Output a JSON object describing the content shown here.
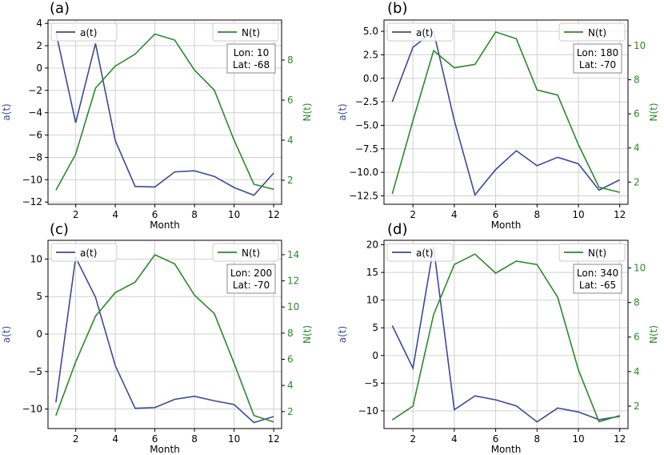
{
  "colors": {
    "a": "#3a4a9a",
    "n": "#2a8a2a",
    "grid": "#d0d0d0",
    "axis": "#000000"
  },
  "chart_data": [
    {
      "type": "line",
      "panel_label": "(a)",
      "xlabel": "Month",
      "ylabel_left": "a(t)",
      "ylabel_right": "N(t)",
      "legend_left": "a(t)",
      "legend_right": "N(t)",
      "info": [
        "Lon: 10",
        "Lat: -68"
      ],
      "x": [
        1,
        2,
        3,
        4,
        5,
        6,
        7,
        8,
        9,
        10,
        11,
        12
      ],
      "xticks": [
        2,
        4,
        6,
        8,
        10,
        12
      ],
      "xlim": [
        0.6,
        12.4
      ],
      "ylim_left": [
        -12.2,
        4.3
      ],
      "yticks_left": [
        -12,
        -10,
        -8,
        -6,
        -4,
        -2,
        0,
        2,
        4
      ],
      "ylim_right": [
        0.8,
        10.0
      ],
      "yticks_right": [
        2,
        4,
        6,
        8
      ],
      "series_left": [
        3.2,
        -4.9,
        2.2,
        -6.5,
        -10.6,
        -10.65,
        -9.3,
        -9.2,
        -9.7,
        -10.7,
        -11.4,
        -9.4
      ],
      "series_right": [
        1.5,
        3.3,
        6.6,
        7.7,
        8.3,
        9.3,
        9.0,
        7.5,
        6.5,
        4.0,
        1.8,
        1.55
      ]
    },
    {
      "type": "line",
      "panel_label": "(b)",
      "xlabel": "Month",
      "ylabel_left": "a(t)",
      "ylabel_right": "N(t)",
      "legend_left": "a(t)",
      "legend_right": "N(t)",
      "info": [
        "Lon: 180",
        "Lat: -70"
      ],
      "x": [
        1,
        2,
        3,
        4,
        5,
        6,
        7,
        8,
        9,
        10,
        11,
        12
      ],
      "xticks": [
        2,
        4,
        6,
        8,
        10,
        12
      ],
      "xlim": [
        0.6,
        12.4
      ],
      "ylim_left": [
        -13.4,
        6.2
      ],
      "yticks_left": [
        -12.5,
        -10.0,
        -7.5,
        -5.0,
        -2.5,
        0.0,
        2.5,
        5.0
      ],
      "yticks_left_labels": [
        "−12.5",
        "−10.0",
        "−7.5",
        "−5.0",
        "−2.5",
        "0.0",
        "2.5",
        "5.0"
      ],
      "ylim_right": [
        0.7,
        11.5
      ],
      "yticks_right": [
        2,
        4,
        6,
        8,
        10
      ],
      "series_left": [
        -2.5,
        3.3,
        5.0,
        -4.5,
        -12.4,
        -9.7,
        -7.7,
        -9.3,
        -8.4,
        -9.1,
        -11.9,
        -10.8
      ],
      "series_right": [
        1.3,
        5.6,
        9.7,
        8.7,
        8.9,
        10.8,
        10.4,
        7.4,
        7.1,
        4.2,
        1.7,
        1.4
      ]
    },
    {
      "type": "line",
      "panel_label": "(c)",
      "xlabel": "Month",
      "ylabel_left": "a(t)",
      "ylabel_right": "N(t)",
      "legend_left": "a(t)",
      "legend_right": "N(t)",
      "info": [
        "Lon: 200",
        "Lat: -70"
      ],
      "x": [
        1,
        2,
        3,
        4,
        5,
        6,
        7,
        8,
        9,
        10,
        11,
        12
      ],
      "xticks": [
        2,
        4,
        6,
        8,
        10,
        12
      ],
      "xlim": [
        0.6,
        12.4
      ],
      "ylim_left": [
        -12.6,
        12.5
      ],
      "yticks_left": [
        -10,
        -5,
        0,
        5,
        10
      ],
      "ylim_right": [
        0.7,
        15.1
      ],
      "yticks_right": [
        2,
        4,
        6,
        8,
        10,
        12,
        14
      ],
      "series_left": [
        -9.1,
        10.2,
        4.9,
        -4.2,
        -9.9,
        -9.8,
        -8.7,
        -8.3,
        -8.9,
        -9.4,
        -11.8,
        -11.0
      ],
      "series_right": [
        1.7,
        5.8,
        9.3,
        11.1,
        11.9,
        14.0,
        13.3,
        10.9,
        9.5,
        5.7,
        1.7,
        1.2
      ]
    },
    {
      "type": "line",
      "panel_label": "(d)",
      "xlabel": "Month",
      "ylabel_left": "a(t)",
      "ylabel_right": "N(t)",
      "legend_left": "a(t)",
      "legend_right": "N(t)",
      "info": [
        "Lon: 340",
        "Lat: -65"
      ],
      "x": [
        1,
        2,
        3,
        4,
        5,
        6,
        7,
        8,
        9,
        10,
        11,
        12
      ],
      "xticks": [
        2,
        4,
        6,
        8,
        10,
        12
      ],
      "xlim": [
        0.6,
        12.4
      ],
      "ylim_left": [
        -13.2,
        20.8
      ],
      "yticks_left": [
        -10,
        -5,
        0,
        5,
        10,
        15,
        20
      ],
      "ylim_right": [
        0.7,
        11.6
      ],
      "yticks_right": [
        2,
        4,
        6,
        8,
        10
      ],
      "series_left": [
        5.4,
        -2.3,
        19.6,
        -9.8,
        -7.3,
        -8.0,
        -9.1,
        -12.0,
        -9.5,
        -10.2,
        -11.6,
        -11.0
      ],
      "series_right": [
        1.2,
        2.0,
        7.3,
        10.2,
        10.8,
        9.7,
        10.4,
        10.2,
        8.3,
        4.1,
        1.1,
        1.45
      ]
    }
  ]
}
